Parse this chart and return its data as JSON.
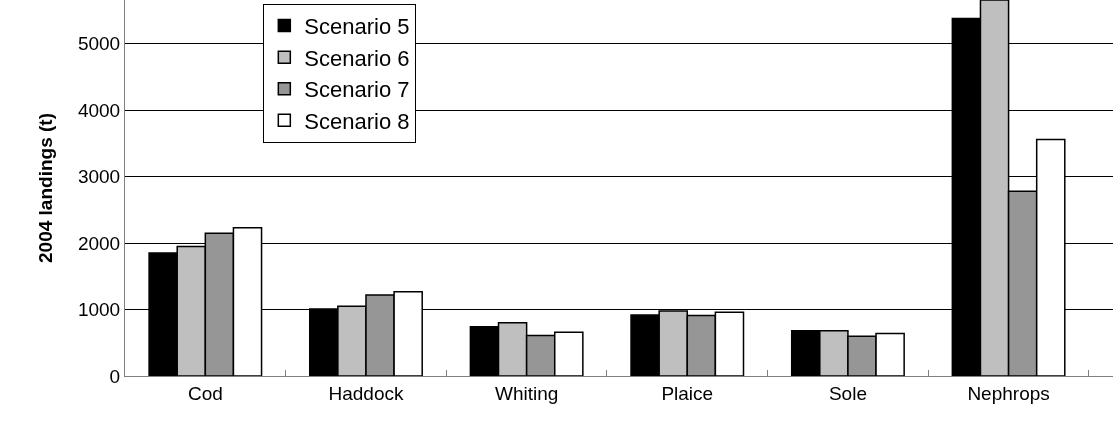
{
  "chart_data": {
    "type": "bar",
    "ylabel": "2004 landings (t)",
    "categories": [
      "Cod",
      "Haddock",
      "Whiting",
      "Plaice",
      "Sole",
      "Nephrops"
    ],
    "series": [
      {
        "name": "Scenario 5",
        "color": "#000000",
        "values": [
          1850,
          1010,
          740,
          920,
          680,
          5380
        ]
      },
      {
        "name": "Scenario 6",
        "color": "#bfbfbf",
        "values": [
          1950,
          1050,
          800,
          980,
          680,
          5660
        ]
      },
      {
        "name": "Scenario 7",
        "color": "#969696",
        "values": [
          2150,
          1220,
          610,
          910,
          600,
          2780
        ]
      },
      {
        "name": "Scenario 8",
        "color": "#ffffff",
        "values": [
          2230,
          1270,
          660,
          960,
          640,
          3560
        ]
      }
    ],
    "ylim": [
      0,
      5660
    ],
    "yticks": [
      0,
      1000,
      2000,
      3000,
      4000,
      5000
    ],
    "grid": "y",
    "legend": "top left"
  }
}
